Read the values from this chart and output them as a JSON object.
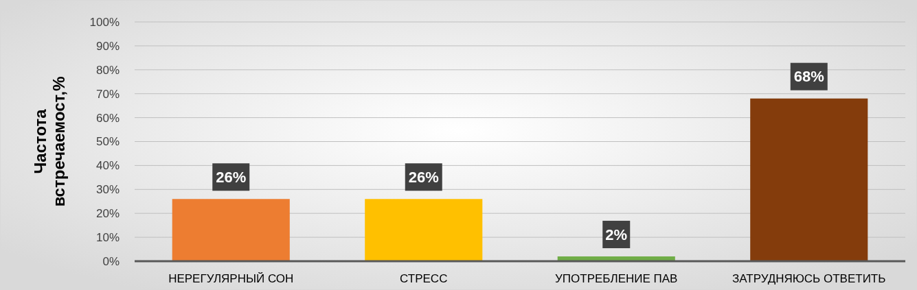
{
  "chart_data": {
    "type": "bar",
    "ylabel": "Частота встречаемост,%",
    "categories": [
      "НЕРЕГУЛЯРНЫЙ СОН",
      "СТРЕСС",
      "УПОТРЕБЛЕНИЕ ПАВ",
      "ЗАТРУДНЯЮСЬ ОТВЕТИТЬ"
    ],
    "values": [
      26,
      26,
      2,
      68
    ],
    "colors": [
      "#ed7d31",
      "#ffc000",
      "#70ad47",
      "#843c0c"
    ],
    "value_labels": [
      "26%",
      "26%",
      "2%",
      "68%"
    ],
    "ylim": [
      0,
      100
    ],
    "yticks": [
      {
        "value": 0,
        "label": "0%"
      },
      {
        "value": 10,
        "label": "10%"
      },
      {
        "value": 20,
        "label": "20%"
      },
      {
        "value": 30,
        "label": "30%"
      },
      {
        "value": 40,
        "label": "40%"
      },
      {
        "value": 50,
        "label": "50%"
      },
      {
        "value": 60,
        "label": "60%"
      },
      {
        "value": 70,
        "label": "70%"
      },
      {
        "value": 80,
        "label": "80%"
      },
      {
        "value": 90,
        "label": "90%"
      },
      {
        "value": 100,
        "label": "100%"
      }
    ],
    "grid": "y"
  }
}
